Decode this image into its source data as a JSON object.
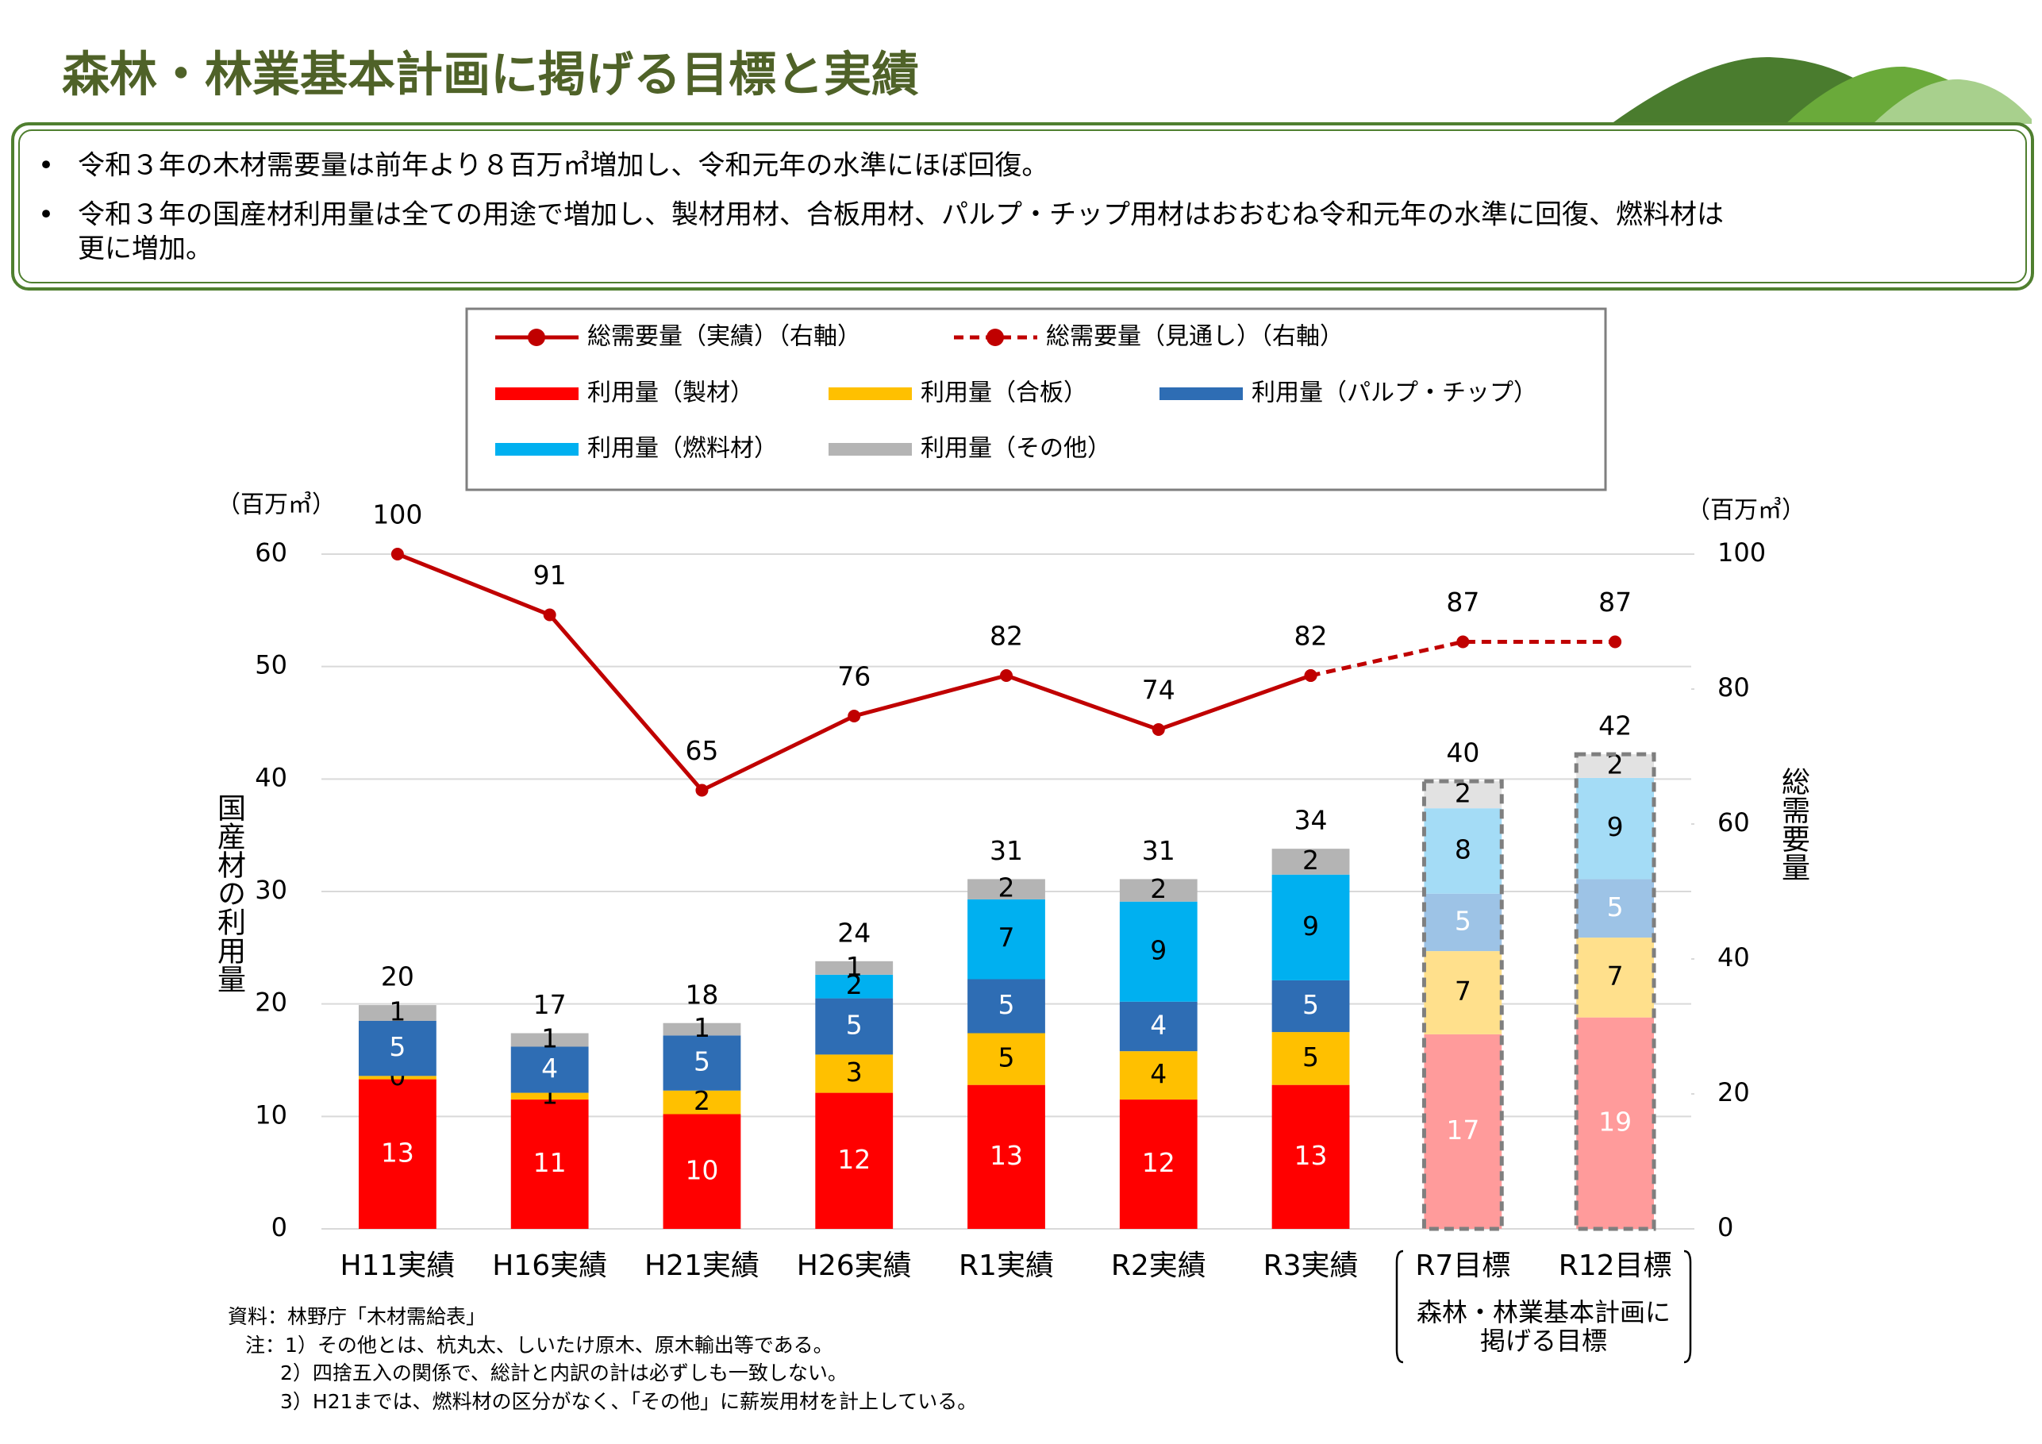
{
  "page": {
    "title": "森林・林業基本計画に掲げる目標と実績",
    "bullets": [
      "令和３年の木材需要量は前年より８百万㎥増加し、令和元年の水準にほぼ回復。",
      [
        "令和３年の国産材利用量は全ての用途で増加し、製材用材、合板用材、パルプ・チップ用材はおおむね令和元年の水準に回復、燃料材は",
        "更に増加。"
      ]
    ],
    "notes": [
      "資料：林野庁「木材需給表」",
      "注：1）その他とは、杭丸太、しいたけ原木、原木輸出等である。",
      "2）四捨五入の関係で、総計と内訳の計は必ずしも一致しない。",
      "3）H21までは、燃料材の区分がなく、「その他」に薪炭用材を計上している。"
    ]
  },
  "chart_data": {
    "type": "bar",
    "categories": [
      "H11実績",
      "H16実績",
      "H21実績",
      "H26実績",
      "R1実績",
      "R2実績",
      "R3実績",
      "R7目標",
      "R12目標"
    ],
    "group_label": [
      "森林・林業基本計画に",
      "掲げる目標"
    ],
    "y_label": "国産材の利用量",
    "y_unit": "（百万㎥）",
    "y2_label": "総需要量",
    "y2_unit": "（百万㎥）",
    "ylim": [
      0,
      60
    ],
    "yticks": [
      0,
      10,
      20,
      30,
      40,
      50,
      60
    ],
    "y2lim": [
      0,
      100
    ],
    "y2ticks": [
      0,
      20,
      40,
      60,
      80,
      100
    ],
    "grid": true,
    "dashed_outline": [
      7,
      8
    ],
    "totals": [
      20,
      17,
      18,
      24,
      31,
      31,
      34,
      40,
      42
    ],
    "series": [
      {
        "name": "総需要量（実績）（右軸）",
        "type": "line",
        "axis": "y2",
        "color": "#c00000",
        "dash": false,
        "values": [
          100,
          91,
          65,
          76,
          82,
          74,
          82,
          null,
          null
        ]
      },
      {
        "name": "総需要量（見通し）（右軸）",
        "type": "line",
        "axis": "y2",
        "color": "#c00000",
        "dash": true,
        "values": [
          null,
          null,
          null,
          null,
          null,
          null,
          82,
          87,
          87
        ]
      },
      {
        "name": "利用量（製材）",
        "type": "bar",
        "color": "#ff0000",
        "target_color": "#ff9b9b",
        "label_color": "#ffffff",
        "values": [
          13.3,
          11.5,
          10.2,
          12.1,
          12.8,
          11.5,
          12.8,
          17.3,
          18.8
        ],
        "value_labels": [
          "13",
          "11",
          "10",
          "12",
          "13",
          "12",
          "13",
          "17",
          "19"
        ]
      },
      {
        "name": "利用量（合板）",
        "type": "bar",
        "color": "#ffc000",
        "target_color": "#ffe08c",
        "label_color": "#000000",
        "values": [
          0.3,
          0.6,
          2.1,
          3.4,
          4.6,
          4.3,
          4.7,
          7.4,
          7.1
        ],
        "value_labels": [
          "0",
          "1",
          "2",
          "3",
          "5",
          "4",
          "5",
          "7",
          "7"
        ]
      },
      {
        "name": "利用量（パルプ・チップ）",
        "type": "bar",
        "color": "#2e6db4",
        "target_color": "#9dc3e6",
        "label_color": "#ffffff",
        "values": [
          4.9,
          4.1,
          4.9,
          5.0,
          4.8,
          4.4,
          4.6,
          5.1,
          5.2
        ],
        "value_labels": [
          "5",
          "4",
          "5",
          "5",
          "5",
          "4",
          "5",
          "5",
          "5"
        ]
      },
      {
        "name": "利用量（燃料材）",
        "type": "bar",
        "color": "#00b0f0",
        "target_color": "#a4dcf6",
        "label_color": "#000000",
        "values": [
          null,
          null,
          null,
          2.1,
          7.1,
          8.9,
          9.4,
          7.6,
          9.0
        ],
        "value_labels": [
          null,
          null,
          null,
          "2",
          "7",
          "9",
          "9",
          "8",
          "9"
        ]
      },
      {
        "name": "利用量（その他）",
        "type": "bar",
        "color": "#b4b4b4",
        "target_color": "#e2e2e2",
        "label_color": "#000000",
        "values": [
          1.4,
          1.2,
          1.1,
          1.2,
          1.8,
          2.0,
          2.3,
          2.4,
          2.1
        ],
        "value_labels": [
          "1",
          "1",
          "1",
          "1",
          "2",
          "2",
          "2",
          "2",
          "2"
        ]
      }
    ]
  }
}
